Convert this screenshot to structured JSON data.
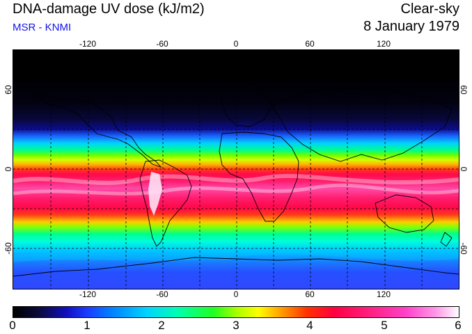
{
  "header": {
    "title": "DNA-damage UV dose (kJ/m2)",
    "subtitle": "MSR - KNMI",
    "mode": "Clear-sky",
    "date": "8 January 1979"
  },
  "map": {
    "longitude_ticks": [
      "-120",
      "-60",
      "0",
      "60",
      "120"
    ],
    "latitude_ticks_left": [
      "60",
      "0",
      "-60"
    ],
    "latitude_ticks_right": [
      "60",
      "0",
      "-60"
    ],
    "accent": "#1212e8"
  },
  "colorbar": {
    "labels": [
      "0",
      "1",
      "2",
      "3",
      "4",
      "5",
      "6"
    ]
  }
}
